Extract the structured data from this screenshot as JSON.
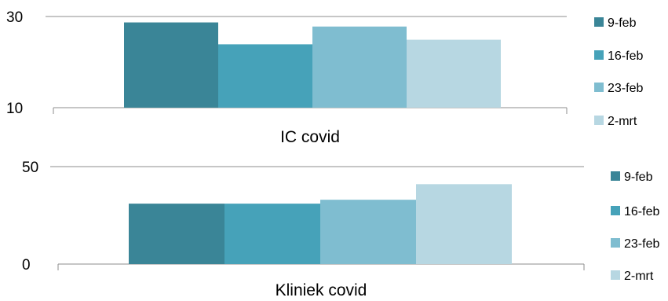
{
  "chart_data": [
    {
      "type": "bar",
      "categories": [
        "IC covid"
      ],
      "series": [
        {
          "name": "9-feb",
          "values": [
            28.7
          ]
        },
        {
          "name": "16-feb",
          "values": [
            23.9
          ]
        },
        {
          "name": "23-feb",
          "values": [
            27.8
          ]
        },
        {
          "name": "2-mrt",
          "values": [
            24.9
          ]
        }
      ],
      "yticks": [
        10,
        30
      ],
      "ylim": [
        10,
        30
      ],
      "grid": true,
      "legend": "right",
      "colors": [
        "#3a8597",
        "#46a2b9",
        "#7fbdd0",
        "#b7d7e2"
      ]
    },
    {
      "type": "bar",
      "categories": [
        "Kliniek covid"
      ],
      "series": [
        {
          "name": "9-feb",
          "values": [
            31
          ]
        },
        {
          "name": "16-feb",
          "values": [
            31
          ]
        },
        {
          "name": "23-feb",
          "values": [
            33
          ]
        },
        {
          "name": "2-mrt",
          "values": [
            41
          ]
        }
      ],
      "yticks": [
        0,
        50
      ],
      "ylim": [
        0,
        50
      ],
      "grid": true,
      "legend": "right",
      "colors": [
        "#3a8597",
        "#46a2b9",
        "#7fbdd0",
        "#b7d7e2"
      ]
    }
  ]
}
